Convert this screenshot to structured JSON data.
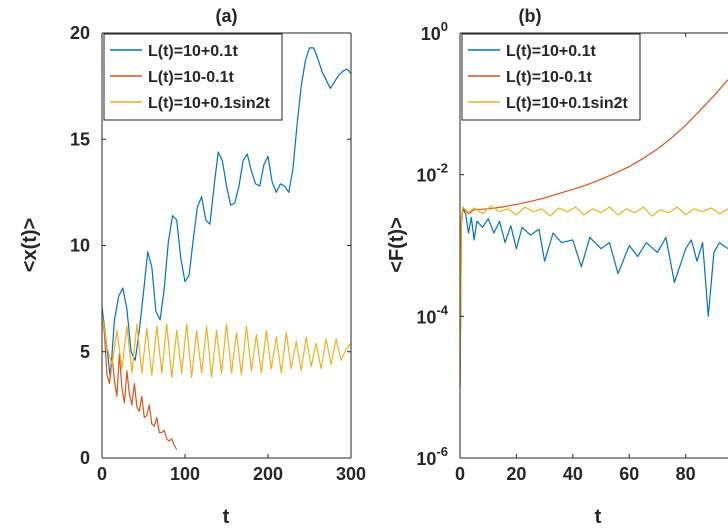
{
  "chart_data": [
    {
      "type": "line",
      "panel_label": "(a)",
      "xlabel": "t",
      "ylabel": "<x(t)>",
      "xlim": [
        0,
        300
      ],
      "ylim": [
        0,
        20
      ],
      "xticks": [
        "0",
        "100",
        "200",
        "300"
      ],
      "yticks": [
        "0",
        "5",
        "10",
        "15",
        "20"
      ],
      "grid": false,
      "legend_position": "top-left",
      "series": [
        {
          "name": "L(t)=10+0.1t",
          "color": "#0072BD",
          "x": [
            0,
            5,
            10,
            15,
            20,
            25,
            30,
            35,
            40,
            45,
            50,
            55,
            60,
            65,
            70,
            75,
            80,
            85,
            90,
            95,
            100,
            105,
            110,
            115,
            120,
            125,
            130,
            135,
            140,
            145,
            150,
            155,
            160,
            165,
            170,
            175,
            180,
            185,
            190,
            195,
            200,
            205,
            210,
            215,
            220,
            225,
            230,
            235,
            240,
            245,
            250,
            255,
            260,
            265,
            270,
            275,
            280,
            285,
            290,
            295,
            300
          ],
          "y": [
            7.1,
            5.5,
            3.8,
            6.5,
            7.6,
            8.0,
            7.0,
            5.0,
            4.6,
            6.0,
            7.8,
            9.7,
            9.0,
            6.9,
            6.5,
            8.0,
            10.2,
            11.4,
            11.2,
            9.4,
            8.3,
            8.6,
            10.3,
            11.8,
            12.3,
            11.2,
            11.0,
            12.8,
            14.4,
            14.0,
            12.8,
            11.9,
            12.0,
            12.8,
            14.0,
            14.3,
            13.5,
            12.9,
            12.8,
            13.8,
            14.2,
            13.0,
            12.5,
            12.9,
            12.8,
            12.5,
            13.6,
            15.7,
            17.5,
            18.7,
            19.3,
            19.3,
            18.8,
            18.2,
            17.8,
            17.4,
            17.7,
            18.0,
            18.2,
            18.3,
            18.1
          ]
        },
        {
          "name": "L(t)=10-0.1t",
          "color": "#D95319",
          "x": [
            0,
            3,
            6,
            9,
            12,
            15,
            18,
            21,
            24,
            27,
            30,
            33,
            36,
            39,
            42,
            45,
            48,
            51,
            54,
            57,
            60,
            63,
            66,
            69,
            72,
            75,
            78,
            81,
            84,
            87,
            90
          ],
          "y": [
            6.8,
            5.8,
            3.9,
            3.5,
            4.8,
            3.6,
            2.9,
            4.9,
            3.3,
            2.6,
            4.1,
            3.0,
            2.5,
            3.5,
            2.4,
            2.2,
            2.9,
            1.9,
            2.0,
            2.5,
            1.6,
            1.5,
            1.9,
            1.2,
            1.2,
            1.3,
            0.9,
            0.8,
            0.9,
            0.6,
            0.4
          ]
        },
        {
          "name": "L(t)=10+0.1sin2t",
          "color": "#EDB120",
          "x": [
            0,
            6,
            12,
            18,
            24,
            30,
            36,
            42,
            48,
            54,
            60,
            66,
            72,
            78,
            84,
            90,
            96,
            102,
            108,
            114,
            120,
            126,
            132,
            138,
            144,
            150,
            156,
            162,
            168,
            174,
            180,
            186,
            192,
            198,
            204,
            210,
            216,
            222,
            228,
            234,
            240,
            246,
            252,
            258,
            264,
            270,
            276,
            282,
            288,
            294,
            300
          ],
          "y": [
            6.8,
            5.2,
            4.4,
            6.0,
            4.2,
            6.2,
            4.0,
            6.3,
            4.0,
            6.1,
            3.9,
            6.2,
            4.0,
            6.3,
            3.8,
            6.0,
            4.0,
            6.3,
            3.8,
            6.0,
            4.0,
            6.2,
            3.8,
            6.0,
            4.0,
            6.3,
            4.0,
            5.9,
            3.9,
            6.2,
            4.1,
            5.8,
            4.0,
            6.0,
            4.2,
            5.7,
            4.0,
            5.9,
            4.2,
            5.5,
            4.1,
            5.7,
            4.3,
            5.4,
            4.2,
            5.6,
            4.4,
            5.6,
            4.6,
            5.1,
            5.4
          ]
        }
      ]
    },
    {
      "type": "line",
      "panel_label": "(b)",
      "xlabel": "t",
      "ylabel": "<F(t)>",
      "xlim": [
        0,
        95
      ],
      "ylim": [
        1e-06,
        1
      ],
      "yscale": "log",
      "xticks": [
        "0",
        "20",
        "40",
        "60",
        "80"
      ],
      "yticks": [
        "10^0",
        "10^-2",
        "10^-4",
        "10^-6"
      ],
      "grid": false,
      "legend_position": "top-left",
      "series": [
        {
          "name": "L(t)=10+0.1t",
          "color": "#0072BD",
          "x": [
            0,
            0.5,
            1,
            2,
            3,
            4,
            5,
            6,
            8,
            10,
            12,
            14,
            16,
            18,
            20,
            22,
            25,
            28,
            30,
            33,
            36,
            40,
            43,
            46,
            50,
            53,
            56,
            60,
            63,
            66,
            70,
            73,
            76,
            80,
            82,
            84,
            86,
            88,
            90,
            92,
            95
          ],
          "y": [
            1e-05,
            0.0025,
            0.0033,
            0.0028,
            0.0015,
            0.0025,
            0.0012,
            0.0022,
            0.0018,
            0.0024,
            0.0015,
            0.0022,
            0.0011,
            0.0019,
            0.0009,
            0.0018,
            0.0014,
            0.0017,
            0.0006,
            0.0015,
            0.0011,
            0.0012,
            0.0005,
            0.0013,
            0.0009,
            0.0011,
            0.0004,
            0.001,
            0.0007,
            0.0011,
            0.0008,
            0.0013,
            0.0003,
            0.0009,
            0.0012,
            0.0006,
            0.0011,
            0.0001,
            0.0008,
            0.0011,
            0.0009
          ]
        },
        {
          "name": "L(t)=10-0.1t",
          "color": "#D95319",
          "x": [
            0,
            0.5,
            1,
            3,
            5,
            10,
            15,
            20,
            25,
            30,
            35,
            40,
            45,
            50,
            55,
            60,
            65,
            70,
            75,
            80,
            85,
            90,
            95
          ],
          "y": [
            1e-05,
            0.002,
            0.0034,
            0.0028,
            0.0032,
            0.0033,
            0.0035,
            0.0038,
            0.0042,
            0.0047,
            0.0054,
            0.0062,
            0.0072,
            0.0086,
            0.0105,
            0.013,
            0.017,
            0.023,
            0.033,
            0.05,
            0.08,
            0.13,
            0.22
          ]
        },
        {
          "name": "L(t)=10+0.1sin2t",
          "color": "#EDB120",
          "x": [
            0,
            0.5,
            1,
            3,
            5,
            8,
            11,
            14,
            17,
            20,
            23,
            26,
            29,
            32,
            35,
            38,
            41,
            44,
            47,
            50,
            53,
            56,
            59,
            62,
            65,
            68,
            71,
            74,
            77,
            80,
            83,
            86,
            89,
            92,
            95
          ],
          "y": [
            1e-05,
            0.0025,
            0.0035,
            0.0029,
            0.0034,
            0.0028,
            0.0036,
            0.003,
            0.0033,
            0.0027,
            0.0035,
            0.003,
            0.0033,
            0.0026,
            0.0034,
            0.003,
            0.0035,
            0.0027,
            0.0033,
            0.0029,
            0.0035,
            0.0027,
            0.0033,
            0.0029,
            0.0035,
            0.0026,
            0.0032,
            0.0029,
            0.0035,
            0.0027,
            0.0033,
            0.003,
            0.0034,
            0.0028,
            0.0033
          ]
        }
      ]
    }
  ]
}
